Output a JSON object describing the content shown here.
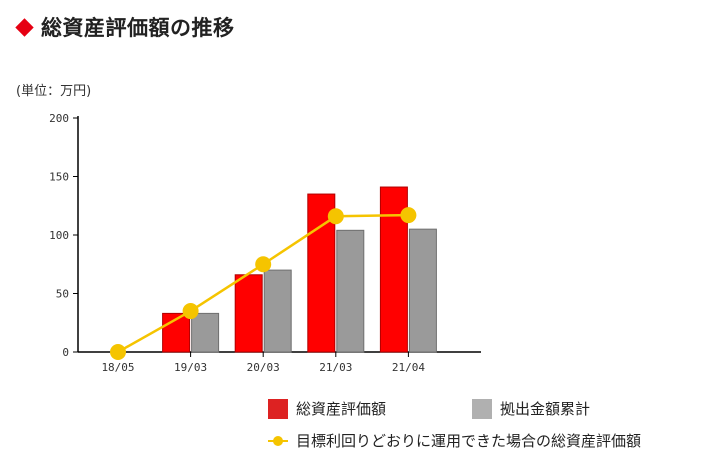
{
  "header": {
    "title": "総資産評価額の推移"
  },
  "unit_label": "(単位：万円)",
  "colors": {
    "accent": "#e60012",
    "bar_red": "#ff0000",
    "bar_gray": "#9a9a9a",
    "line": "#f5c400",
    "legend_red": "#dd2222",
    "legend_gray": "#b0b0b0"
  },
  "chart_data": {
    "type": "bar",
    "title": "総資産評価額の推移",
    "ylabel": "(単位：万円)",
    "xlabel": "",
    "categories": [
      "18/05",
      "19/03",
      "20/03",
      "21/03",
      "21/04"
    ],
    "ylim": [
      0,
      200
    ],
    "yticks": [
      0,
      50,
      100,
      150,
      200
    ],
    "series": [
      {
        "name": "総資産評価額",
        "type": "bar",
        "values": [
          0,
          33,
          66,
          135,
          141
        ]
      },
      {
        "name": "拠出金額累計",
        "type": "bar",
        "values": [
          0,
          33,
          70,
          104,
          105
        ]
      },
      {
        "name": "目標利回りどおりに運用できた場合の総資産評価額",
        "type": "line",
        "values": [
          0,
          35,
          75,
          116,
          117
        ]
      }
    ],
    "legend_position": "bottom",
    "grid": false
  }
}
